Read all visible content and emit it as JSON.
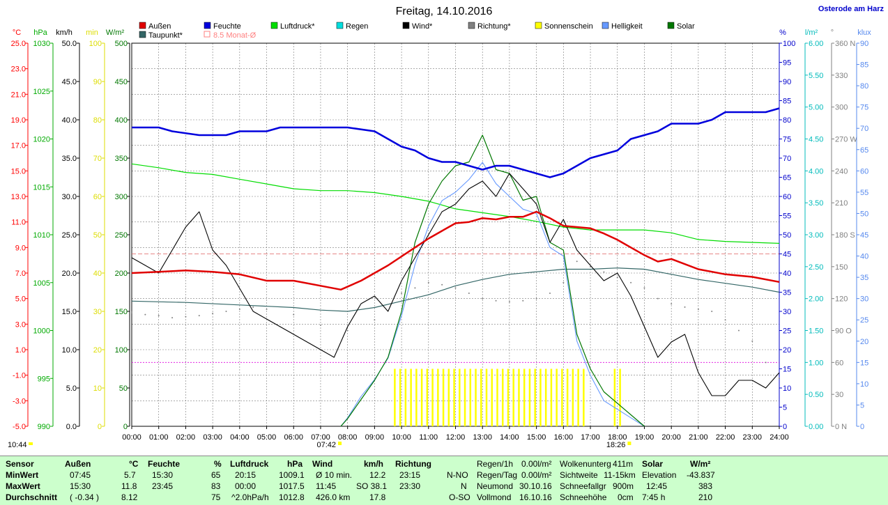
{
  "title": "Freitag, 14.10.2016",
  "location": "Osterode am Harz",
  "legend": [
    {
      "label": "Außen",
      "color": "#e00000"
    },
    {
      "label": "Feuchte",
      "color": "#0000dd"
    },
    {
      "label": "Luftdruck*",
      "color": "#00dd00"
    },
    {
      "label": "Regen",
      "color": "#00dddd"
    },
    {
      "label": "Wind*",
      "color": "#000000"
    },
    {
      "label": "Richtung*",
      "color": "#808080"
    },
    {
      "label": "Sonnenschein",
      "color": "#ffff00"
    },
    {
      "label": "Helligkeit",
      "color": "#6699ff"
    },
    {
      "label": "Solar",
      "color": "#007700"
    },
    {
      "label": "Taupunkt*",
      "color": "#336666"
    },
    {
      "label": "8.5 Monat-Ø",
      "color": "#ff8080"
    }
  ],
  "axes": {
    "temp": {
      "unit": "°C",
      "color": "#ff0000",
      "ticks": [
        "25.0",
        "23.0",
        "21.0",
        "19.0",
        "17.0",
        "15.0",
        "13.0",
        "11.0",
        "9.0",
        "7.0",
        "5.0",
        "3.0",
        "1.0",
        "-1.0",
        "-3.0",
        "-5.0"
      ]
    },
    "pressure": {
      "unit": "hPa",
      "color": "#00aa00",
      "ticks": [
        "1030",
        "1025",
        "1020",
        "1015",
        "1010",
        "1005",
        "1000",
        "995",
        "990"
      ]
    },
    "wind": {
      "unit": "km/h",
      "color": "#000000",
      "ticks": [
        "50.0",
        "45.0",
        "40.0",
        "35.0",
        "30.0",
        "25.0",
        "20.0",
        "15.0",
        "10.0",
        "5.0",
        "0.0"
      ]
    },
    "sun": {
      "unit": "min",
      "color": "#ffff00",
      "ticks": [
        "100",
        "90",
        "80",
        "70",
        "60",
        "50",
        "40",
        "30",
        "20",
        "10",
        "0"
      ]
    },
    "solar": {
      "unit": "W/m²",
      "color": "#007700",
      "ticks": [
        "500",
        "450",
        "400",
        "350",
        "300",
        "250",
        "200",
        "150",
        "100",
        "50",
        "0"
      ]
    },
    "humidity": {
      "unit": "%",
      "color": "#0000cc",
      "ticks": [
        "100",
        "95",
        "90",
        "85",
        "80",
        "75",
        "70",
        "65",
        "60",
        "55",
        "50",
        "45",
        "40",
        "35",
        "30",
        "25",
        "20",
        "15",
        "10",
        "5",
        "0"
      ]
    },
    "rain": {
      "unit": "l/m²",
      "color": "#00cccc",
      "ticks": [
        "6.00",
        "5.50",
        "5.00",
        "4.50",
        "4.00",
        "3.50",
        "3.00",
        "2.50",
        "2.00",
        "1.50",
        "1.00",
        "0.50",
        "0.00"
      ]
    },
    "direction": {
      "unit": "°",
      "color": "#808080",
      "ticks": [
        "360 N",
        "330",
        "300",
        "270 W",
        "240",
        "210",
        "180 S",
        "150",
        "120",
        "90 O",
        "60",
        "30",
        "0 N"
      ]
    },
    "lux": {
      "unit": "klux",
      "color": "#6699ff",
      "ticks": [
        "90",
        "85",
        "80",
        "75",
        "70",
        "65",
        "60",
        "55",
        "50",
        "45",
        "40",
        "35",
        "30",
        "25",
        "20",
        "15",
        "10",
        "5",
        "0"
      ]
    },
    "time": [
      "00:00",
      "01:00",
      "02:00",
      "03:00",
      "04:00",
      "05:00",
      "06:00",
      "07:00",
      "08:00",
      "09:00",
      "10:00",
      "11:00",
      "12:00",
      "13:00",
      "14:00",
      "15:00",
      "16:00",
      "17:00",
      "18:00",
      "19:00",
      "20:00",
      "21:00",
      "22:00",
      "23:00",
      "24:00"
    ]
  },
  "markers": {
    "sunrise": "07:42",
    "sunset": "18:26",
    "moon": "10:44"
  },
  "chart_data": {
    "type": "line",
    "title": "Freitag, 14.10.2016",
    "x_range": [
      0,
      24
    ],
    "series": [
      {
        "name": "Außen",
        "axis": "temp",
        "color": "#e00000",
        "x": [
          0,
          1,
          2,
          3,
          4,
          5,
          6,
          7,
          7.75,
          8.5,
          9.5,
          10.5,
          11,
          11.5,
          12,
          12.5,
          13,
          13.5,
          14,
          14.5,
          15,
          15.5,
          16,
          16.5,
          17,
          17.5,
          18,
          18.5,
          19,
          19.5,
          20,
          21,
          22,
          23,
          24
        ],
        "y": [
          7.0,
          7.1,
          7.2,
          7.1,
          6.9,
          6.4,
          6.4,
          6.0,
          5.7,
          6.4,
          7.6,
          9.0,
          9.7,
          10.3,
          10.9,
          11.0,
          11.3,
          11.2,
          11.4,
          11.4,
          11.8,
          11.3,
          10.7,
          10.6,
          10.5,
          10.1,
          9.6,
          9.0,
          8.4,
          7.9,
          8.1,
          7.3,
          6.9,
          6.7,
          6.3
        ]
      },
      {
        "name": "Feuchte",
        "axis": "humidity",
        "color": "#0000dd",
        "x": [
          0,
          1,
          1.5,
          2.5,
          3.5,
          4,
          5,
          5.5,
          6,
          7.5,
          8,
          9,
          9.5,
          10,
          10.5,
          11,
          11.5,
          12,
          12.5,
          13,
          13.5,
          14,
          14.5,
          15,
          15.5,
          16,
          16.5,
          17,
          17.5,
          18,
          18.5,
          19,
          19.5,
          20,
          21,
          21.5,
          22,
          23,
          23.5,
          24
        ],
        "y": [
          78,
          78,
          77,
          76,
          76,
          77,
          77,
          78,
          78,
          78,
          78,
          77,
          75,
          73,
          72,
          70,
          69,
          69,
          68,
          67,
          68,
          68,
          67,
          66,
          65,
          66,
          68,
          70,
          71,
          72,
          75,
          76,
          77,
          79,
          79,
          80,
          82,
          82,
          82,
          83
        ]
      },
      {
        "name": "Luftdruck*",
        "axis": "pressure",
        "color": "#00dd00",
        "x": [
          0,
          1,
          2,
          3,
          4,
          5,
          6,
          7,
          8,
          9,
          10,
          11,
          12,
          13,
          14,
          15,
          16,
          17,
          18,
          19,
          20,
          21,
          22,
          23,
          24
        ],
        "y": [
          1017.4,
          1017.0,
          1016.5,
          1016.3,
          1015.8,
          1015.3,
          1014.8,
          1014.6,
          1014.6,
          1014.4,
          1014.0,
          1013.5,
          1012.7,
          1012.3,
          1011.9,
          1011.4,
          1010.8,
          1010.5,
          1010.5,
          1010.5,
          1010.2,
          1009.5,
          1009.3,
          1009.2,
          1009.1
        ]
      },
      {
        "name": "Wind*",
        "axis": "wind",
        "color": "#000000",
        "x": [
          0,
          0.5,
          1,
          1.5,
          2,
          2.5,
          3,
          3.5,
          4,
          4.5,
          5,
          5.5,
          6,
          6.5,
          7,
          7.5,
          8,
          8.5,
          9,
          9.5,
          10,
          10.5,
          11,
          11.5,
          12,
          12.5,
          13,
          13.5,
          14,
          14.5,
          15,
          15.5,
          16,
          16.5,
          17,
          17.5,
          18,
          18.5,
          19,
          19.5,
          20,
          20.5,
          21,
          21.5,
          22,
          22.5,
          23,
          23.5,
          24
        ],
        "y": [
          22,
          21,
          20,
          23,
          26,
          28,
          23,
          21,
          18,
          15,
          14,
          13,
          12,
          11,
          10,
          9,
          13,
          16,
          17,
          15,
          19,
          22,
          25,
          28,
          29,
          31,
          32,
          30,
          33,
          31,
          29,
          24,
          27,
          23,
          21,
          19,
          20,
          17,
          13,
          9,
          11,
          12,
          7,
          4,
          4,
          6,
          6,
          5,
          7
        ]
      },
      {
        "name": "Taupunkt*",
        "axis": "temp",
        "color": "#336666",
        "x": [
          0,
          2,
          4,
          6,
          7,
          8,
          9,
          10,
          11,
          12,
          13,
          14,
          15,
          16,
          17,
          18,
          19,
          20,
          21,
          22,
          23,
          24
        ],
        "y": [
          4.8,
          4.7,
          4.5,
          4.3,
          4.1,
          4.0,
          4.3,
          4.8,
          5.3,
          6.0,
          6.5,
          6.9,
          7.1,
          7.3,
          7.3,
          7.4,
          7.3,
          6.9,
          6.5,
          6.2,
          5.9,
          5.5
        ]
      },
      {
        "name": "Solar",
        "axis": "solar",
        "color": "#007700",
        "x": [
          7.75,
          8,
          8.5,
          9,
          9.5,
          10,
          10.5,
          11,
          11.5,
          12,
          12.5,
          13,
          13.5,
          14,
          14.5,
          15,
          15.5,
          16,
          16.5,
          17,
          17.5,
          18,
          18.5,
          19
        ],
        "y": [
          0,
          10,
          35,
          60,
          90,
          150,
          240,
          290,
          320,
          340,
          345,
          380,
          335,
          330,
          295,
          300,
          240,
          230,
          120,
          75,
          45,
          30,
          15,
          0
        ]
      },
      {
        "name": "Helligkeit",
        "axis": "lux",
        "color": "#6699ff",
        "x": [
          7.75,
          8,
          8.5,
          9,
          9.5,
          10,
          10.5,
          11,
          11.5,
          12,
          12.5,
          13,
          13.5,
          14,
          14.5,
          15,
          15.5,
          16,
          16.5,
          17,
          17.5,
          18,
          18.5,
          19
        ],
        "y": [
          0,
          2,
          7,
          11,
          16,
          26,
          38,
          47,
          53,
          55,
          58,
          62,
          57,
          54,
          51,
          50,
          42,
          40,
          20,
          12,
          6,
          4,
          2,
          0
        ]
      },
      {
        "name": "Richtung*",
        "axis": "direction",
        "color": "#808080",
        "style": "dots",
        "x": [
          0,
          0.5,
          1,
          1.5,
          2,
          2.5,
          3,
          3.5,
          4,
          4.5,
          5,
          6,
          7,
          8,
          9,
          10,
          10.5,
          11,
          11.5,
          12,
          12.5,
          13,
          13.5,
          14,
          14.5,
          15,
          15.5,
          16,
          16.5,
          17,
          17.5,
          18,
          18.5,
          19,
          19.5,
          20,
          20.5,
          21,
          21.5,
          22,
          22.5,
          23,
          23.5,
          24
        ],
        "y": [
          107,
          105,
          104,
          102,
          103,
          104,
          106,
          108,
          110,
          112,
          110,
          105,
          95,
          90,
          100,
          125,
          130,
          135,
          133,
          130,
          125,
          120,
          118,
          117,
          118,
          120,
          125,
          135,
          155,
          150,
          145,
          140,
          135,
          130,
          120,
          115,
          112,
          110,
          108,
          100,
          90,
          80,
          60,
          45
        ]
      }
    ],
    "monthly_average_temp": 8.5,
    "sunshine_intervals": [
      [
        9.75,
        16.85
      ],
      [
        17.9,
        18.2
      ]
    ]
  },
  "summary": {
    "headers": {
      "sensor": "Sensor",
      "aussen": "Außen",
      "aussen_unit": "°C",
      "feuchte": "Feuchte",
      "feuchte_unit": "%",
      "druck": "Luftdruck",
      "druck_unit": "hPa",
      "wind": "Wind",
      "wind_unit": "km/h",
      "richtung": "Richtung",
      "solar": "Solar",
      "solar_unit": "W/m²"
    },
    "row_labels": [
      "MinWert",
      "MaxWert",
      "Durchschnitt"
    ],
    "aussen": [
      [
        "07:45",
        "5.7"
      ],
      [
        "15:30",
        "11.8"
      ],
      [
        "( -0.34 )",
        "8.12"
      ]
    ],
    "feuchte": [
      [
        "15:30",
        "65"
      ],
      [
        "23:45",
        "83"
      ],
      [
        "",
        "75"
      ]
    ],
    "druck": [
      [
        "20:15",
        "1009.1"
      ],
      [
        "00:00",
        "1017.5"
      ],
      [
        "^2.0hPa/h",
        "1012.8"
      ]
    ],
    "wind": [
      [
        "Ø 10 min.",
        "12.2"
      ],
      [
        "11:45",
        "SO 38.1"
      ],
      [
        "426.0 km",
        "17.8"
      ]
    ],
    "richtung": [
      [
        "23:15",
        "N-NO"
      ],
      [
        "23:30",
        "N"
      ],
      [
        "",
        "O-SO"
      ]
    ],
    "regen": [
      [
        "Regen/1h",
        "0.00l/m²"
      ],
      [
        "Regen/Tag",
        "0.00l/m²"
      ],
      [
        "Neumond",
        "30.10.16"
      ],
      [
        "Vollmond",
        "16.10.16"
      ]
    ],
    "wolken": [
      [
        "Wolkenunterg",
        "411m"
      ],
      [
        "Sichtweite",
        "11-15km"
      ],
      [
        "Schneefallgr",
        "900m"
      ],
      [
        "Schneehöhe",
        "0cm"
      ]
    ],
    "solar": [
      [
        "Elevation",
        "-43.837"
      ],
      [
        "12:45",
        "383"
      ],
      [
        "7:45 h",
        "210"
      ]
    ]
  }
}
